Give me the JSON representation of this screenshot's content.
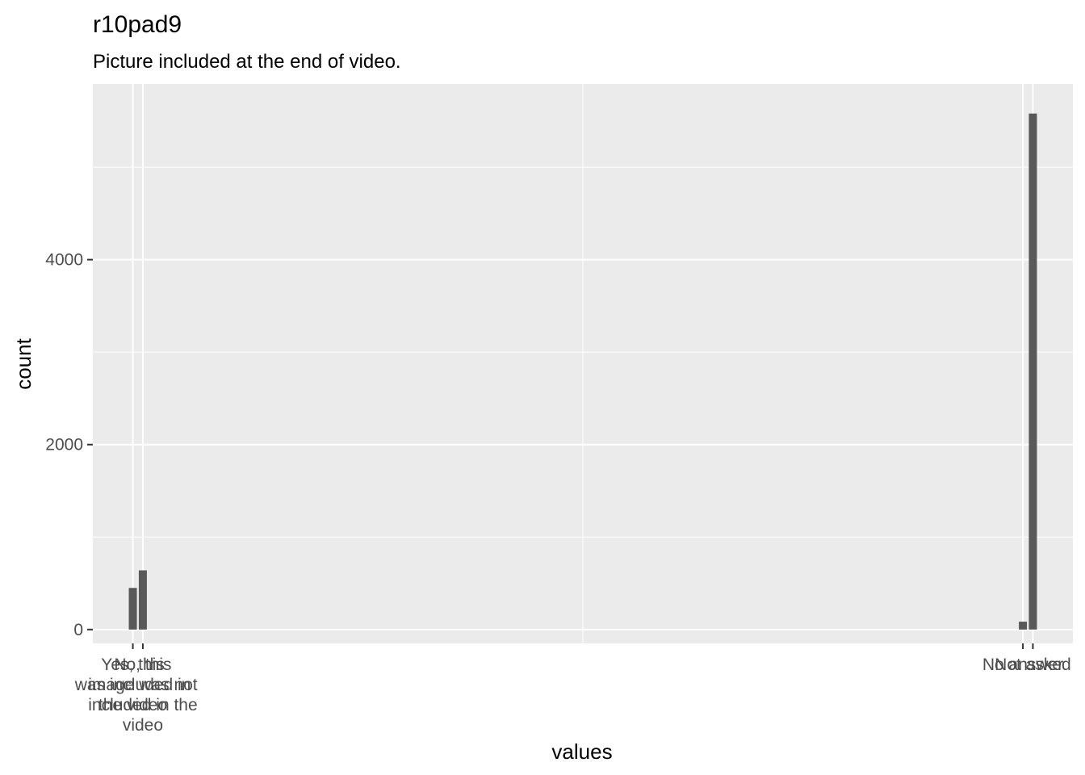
{
  "chart_data": {
    "type": "bar",
    "title": "r10pad9",
    "subtitle": "Picture included at the end of video.",
    "xlabel": "values",
    "ylabel": "count",
    "x_scale": "continuous",
    "xlim": [
      -0.2,
      4.7
    ],
    "ylim": [
      -150,
      5900
    ],
    "y_ticks": [
      0,
      2000,
      4000
    ],
    "y_tick_labels": [
      "0",
      "2000",
      "4000"
    ],
    "x_ticks": [
      {
        "value": 0.0,
        "label": "Yes, this\nwas included in\nthe video"
      },
      {
        "value": 0.05,
        "label": "No, this\nimage was not\nincluded in the\nvideo"
      },
      {
        "value": 4.45,
        "label": "No answer"
      },
      {
        "value": 4.5,
        "label": "Not asked"
      }
    ],
    "bars": [
      {
        "x": 0.0,
        "value": 450
      },
      {
        "x": 0.05,
        "value": 640
      },
      {
        "x": 4.45,
        "value": 85
      },
      {
        "x": 4.5,
        "value": 5580
      }
    ],
    "bar_color": "#595959",
    "panel_color": "#ebebeb",
    "grid_color": "#ffffff",
    "grid": true,
    "legend": "none"
  }
}
